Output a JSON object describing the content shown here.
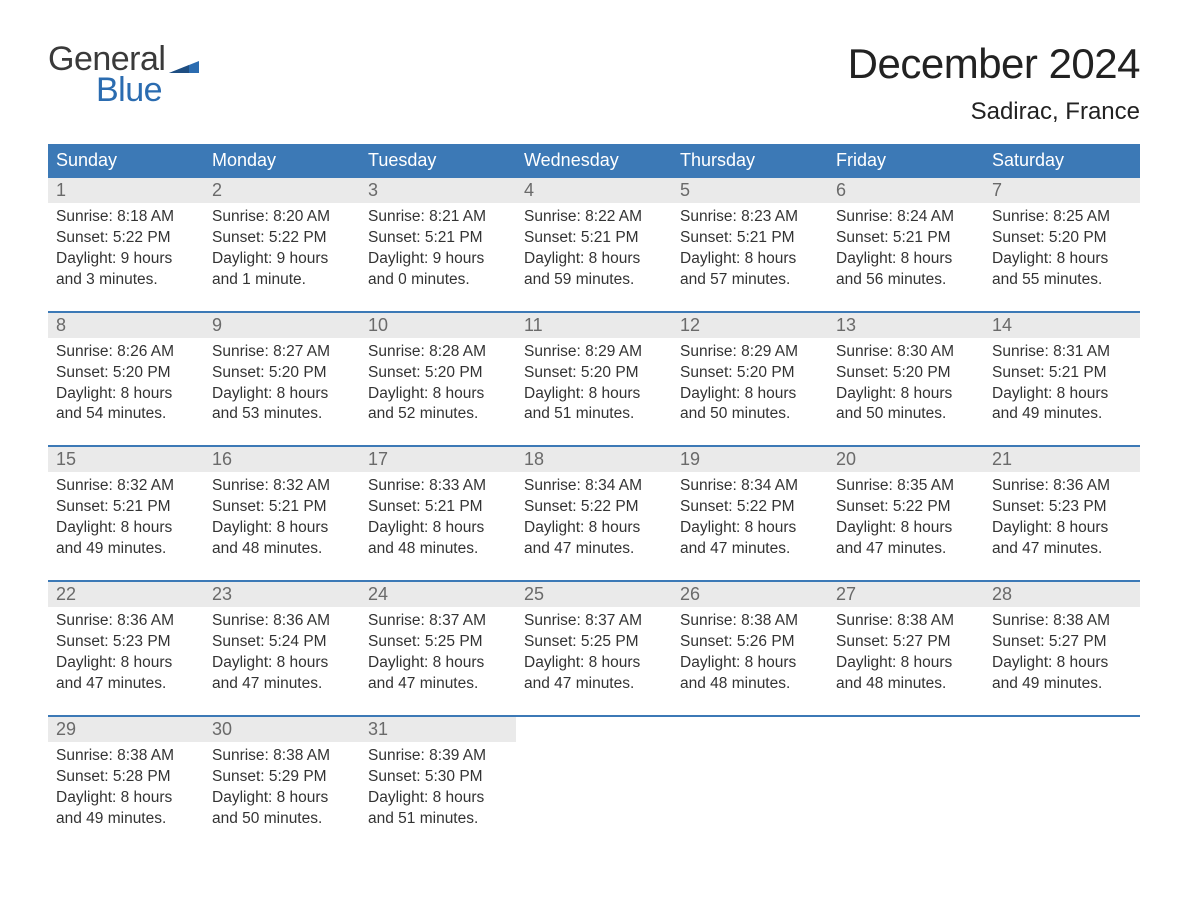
{
  "logo": {
    "line1": "General",
    "line2": "Blue",
    "flag_color": "#2b6cb0",
    "text_color": "#3a3a3a"
  },
  "header": {
    "title": "December 2024",
    "location": "Sadirac, France"
  },
  "colors": {
    "header_bar": "#3c79b6",
    "header_text": "#ffffff",
    "week_rule": "#3c79b6",
    "daynum_bg": "#eaeaea",
    "daynum_text": "#6a6a6a",
    "body_text": "#333333",
    "background": "#ffffff"
  },
  "daynames": [
    "Sunday",
    "Monday",
    "Tuesday",
    "Wednesday",
    "Thursday",
    "Friday",
    "Saturday"
  ],
  "weeks": [
    [
      {
        "n": "1",
        "sunrise": "Sunrise: 8:18 AM",
        "sunset": "Sunset: 5:22 PM",
        "d1": "Daylight: 9 hours",
        "d2": "and 3 minutes."
      },
      {
        "n": "2",
        "sunrise": "Sunrise: 8:20 AM",
        "sunset": "Sunset: 5:22 PM",
        "d1": "Daylight: 9 hours",
        "d2": "and 1 minute."
      },
      {
        "n": "3",
        "sunrise": "Sunrise: 8:21 AM",
        "sunset": "Sunset: 5:21 PM",
        "d1": "Daylight: 9 hours",
        "d2": "and 0 minutes."
      },
      {
        "n": "4",
        "sunrise": "Sunrise: 8:22 AM",
        "sunset": "Sunset: 5:21 PM",
        "d1": "Daylight: 8 hours",
        "d2": "and 59 minutes."
      },
      {
        "n": "5",
        "sunrise": "Sunrise: 8:23 AM",
        "sunset": "Sunset: 5:21 PM",
        "d1": "Daylight: 8 hours",
        "d2": "and 57 minutes."
      },
      {
        "n": "6",
        "sunrise": "Sunrise: 8:24 AM",
        "sunset": "Sunset: 5:21 PM",
        "d1": "Daylight: 8 hours",
        "d2": "and 56 minutes."
      },
      {
        "n": "7",
        "sunrise": "Sunrise: 8:25 AM",
        "sunset": "Sunset: 5:20 PM",
        "d1": "Daylight: 8 hours",
        "d2": "and 55 minutes."
      }
    ],
    [
      {
        "n": "8",
        "sunrise": "Sunrise: 8:26 AM",
        "sunset": "Sunset: 5:20 PM",
        "d1": "Daylight: 8 hours",
        "d2": "and 54 minutes."
      },
      {
        "n": "9",
        "sunrise": "Sunrise: 8:27 AM",
        "sunset": "Sunset: 5:20 PM",
        "d1": "Daylight: 8 hours",
        "d2": "and 53 minutes."
      },
      {
        "n": "10",
        "sunrise": "Sunrise: 8:28 AM",
        "sunset": "Sunset: 5:20 PM",
        "d1": "Daylight: 8 hours",
        "d2": "and 52 minutes."
      },
      {
        "n": "11",
        "sunrise": "Sunrise: 8:29 AM",
        "sunset": "Sunset: 5:20 PM",
        "d1": "Daylight: 8 hours",
        "d2": "and 51 minutes."
      },
      {
        "n": "12",
        "sunrise": "Sunrise: 8:29 AM",
        "sunset": "Sunset: 5:20 PM",
        "d1": "Daylight: 8 hours",
        "d2": "and 50 minutes."
      },
      {
        "n": "13",
        "sunrise": "Sunrise: 8:30 AM",
        "sunset": "Sunset: 5:20 PM",
        "d1": "Daylight: 8 hours",
        "d2": "and 50 minutes."
      },
      {
        "n": "14",
        "sunrise": "Sunrise: 8:31 AM",
        "sunset": "Sunset: 5:21 PM",
        "d1": "Daylight: 8 hours",
        "d2": "and 49 minutes."
      }
    ],
    [
      {
        "n": "15",
        "sunrise": "Sunrise: 8:32 AM",
        "sunset": "Sunset: 5:21 PM",
        "d1": "Daylight: 8 hours",
        "d2": "and 49 minutes."
      },
      {
        "n": "16",
        "sunrise": "Sunrise: 8:32 AM",
        "sunset": "Sunset: 5:21 PM",
        "d1": "Daylight: 8 hours",
        "d2": "and 48 minutes."
      },
      {
        "n": "17",
        "sunrise": "Sunrise: 8:33 AM",
        "sunset": "Sunset: 5:21 PM",
        "d1": "Daylight: 8 hours",
        "d2": "and 48 minutes."
      },
      {
        "n": "18",
        "sunrise": "Sunrise: 8:34 AM",
        "sunset": "Sunset: 5:22 PM",
        "d1": "Daylight: 8 hours",
        "d2": "and 47 minutes."
      },
      {
        "n": "19",
        "sunrise": "Sunrise: 8:34 AM",
        "sunset": "Sunset: 5:22 PM",
        "d1": "Daylight: 8 hours",
        "d2": "and 47 minutes."
      },
      {
        "n": "20",
        "sunrise": "Sunrise: 8:35 AM",
        "sunset": "Sunset: 5:22 PM",
        "d1": "Daylight: 8 hours",
        "d2": "and 47 minutes."
      },
      {
        "n": "21",
        "sunrise": "Sunrise: 8:36 AM",
        "sunset": "Sunset: 5:23 PM",
        "d1": "Daylight: 8 hours",
        "d2": "and 47 minutes."
      }
    ],
    [
      {
        "n": "22",
        "sunrise": "Sunrise: 8:36 AM",
        "sunset": "Sunset: 5:23 PM",
        "d1": "Daylight: 8 hours",
        "d2": "and 47 minutes."
      },
      {
        "n": "23",
        "sunrise": "Sunrise: 8:36 AM",
        "sunset": "Sunset: 5:24 PM",
        "d1": "Daylight: 8 hours",
        "d2": "and 47 minutes."
      },
      {
        "n": "24",
        "sunrise": "Sunrise: 8:37 AM",
        "sunset": "Sunset: 5:25 PM",
        "d1": "Daylight: 8 hours",
        "d2": "and 47 minutes."
      },
      {
        "n": "25",
        "sunrise": "Sunrise: 8:37 AM",
        "sunset": "Sunset: 5:25 PM",
        "d1": "Daylight: 8 hours",
        "d2": "and 47 minutes."
      },
      {
        "n": "26",
        "sunrise": "Sunrise: 8:38 AM",
        "sunset": "Sunset: 5:26 PM",
        "d1": "Daylight: 8 hours",
        "d2": "and 48 minutes."
      },
      {
        "n": "27",
        "sunrise": "Sunrise: 8:38 AM",
        "sunset": "Sunset: 5:27 PM",
        "d1": "Daylight: 8 hours",
        "d2": "and 48 minutes."
      },
      {
        "n": "28",
        "sunrise": "Sunrise: 8:38 AM",
        "sunset": "Sunset: 5:27 PM",
        "d1": "Daylight: 8 hours",
        "d2": "and 49 minutes."
      }
    ],
    [
      {
        "n": "29",
        "sunrise": "Sunrise: 8:38 AM",
        "sunset": "Sunset: 5:28 PM",
        "d1": "Daylight: 8 hours",
        "d2": "and 49 minutes."
      },
      {
        "n": "30",
        "sunrise": "Sunrise: 8:38 AM",
        "sunset": "Sunset: 5:29 PM",
        "d1": "Daylight: 8 hours",
        "d2": "and 50 minutes."
      },
      {
        "n": "31",
        "sunrise": "Sunrise: 8:39 AM",
        "sunset": "Sunset: 5:30 PM",
        "d1": "Daylight: 8 hours",
        "d2": "and 51 minutes."
      },
      null,
      null,
      null,
      null
    ]
  ]
}
